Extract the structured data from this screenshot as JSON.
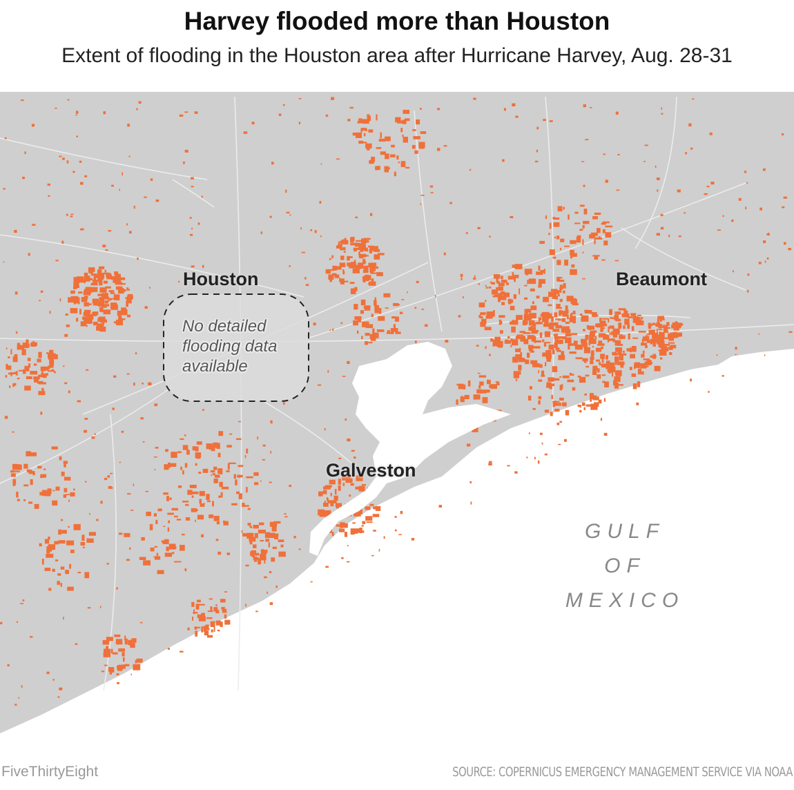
{
  "header": {
    "title": "Harvey flooded more than Houston",
    "subtitle": "Extent of flooding in the Houston area after Hurricane Harvey, Aug. 28-31"
  },
  "labels": {
    "houston": "Houston",
    "beaumont": "Beaumont",
    "galveston": "Galveston"
  },
  "annotation": {
    "line1": "No detailed",
    "line2": "flooding data",
    "line3": "available"
  },
  "gulf": {
    "line1": "GULF",
    "line2": "OF",
    "line3": "MEXICO"
  },
  "footer": {
    "brand": "FiveThirtyEight",
    "source": "SOURCE: COPERNICUS EMERGENCY MANAGEMENT SERVICE VIA NOAA"
  },
  "colors": {
    "land": "#cfcfcf",
    "flood": "#f0703a",
    "water": "#ffffff",
    "roads": "#eeeeee"
  }
}
